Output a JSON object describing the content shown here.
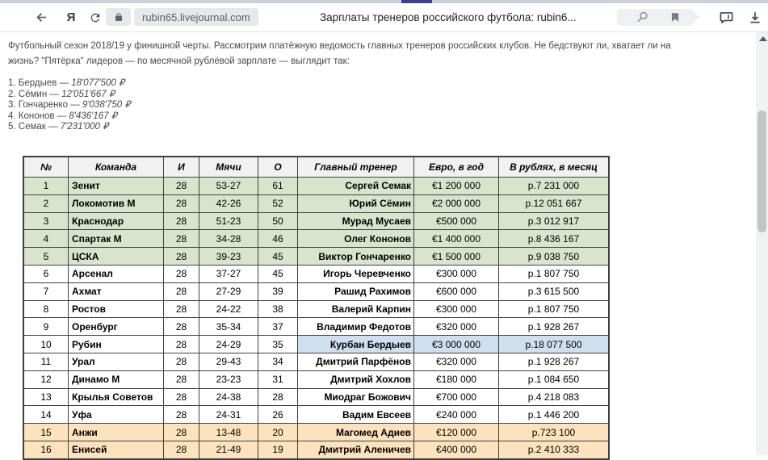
{
  "browser": {
    "url": "rubin65.livejournal.com",
    "page_title": "Зарплаты тренеров российского футбола: rubin6...",
    "yandex_logo": "Я",
    "tab_accent_color": "#3a3f97"
  },
  "intro": {
    "line1": "Футбольный сезон 2018/19 у финишной черты. Рассмотрим платёжную ведомость главных тренеров российских клубов. Не бедствуют ли, хватает ли на",
    "line2": "жизнь? \"Пятёрка\" лидеров — по месячной рублёвой зарплате — выглядит так:",
    "leaders": [
      {
        "label": "1. Бердыев — ",
        "amount": "18'077'500 ₽"
      },
      {
        "label": "2. Сёмин — ",
        "amount": "12'051'667 ₽"
      },
      {
        "label": "3. Гончаренко — ",
        "amount": "9'038'750 ₽"
      },
      {
        "label": "4. Кононов — ",
        "amount": "8'436'167 ₽"
      },
      {
        "label": "5. Семак — ",
        "amount": "7'231'000 ₽"
      }
    ]
  },
  "table": {
    "headers": [
      "№",
      "Команда",
      "И",
      "Мячи",
      "О",
      "Главный тренер",
      "Евро, в год",
      "В рублях, в месяц"
    ],
    "rows": [
      {
        "cells": [
          "1",
          "Зенит",
          "28",
          "53-27",
          "61",
          "Сергей Семак",
          "€1 200 000",
          "р.7 231 000"
        ],
        "tone": "green",
        "highlight": false
      },
      {
        "cells": [
          "2",
          "Локомотив М",
          "28",
          "42-26",
          "52",
          "Юрий Сёмин",
          "€2 000 000",
          "р.12 051 667"
        ],
        "tone": "green",
        "highlight": false
      },
      {
        "cells": [
          "3",
          "Краснодар",
          "28",
          "51-23",
          "50",
          "Мурад Мусаев",
          "€500 000",
          "р.3 012 917"
        ],
        "tone": "green",
        "highlight": false
      },
      {
        "cells": [
          "4",
          "Спартак М",
          "28",
          "34-28",
          "46",
          "Олег Кононов",
          "€1 400 000",
          "р.8 436 167"
        ],
        "tone": "green",
        "highlight": false
      },
      {
        "cells": [
          "5",
          "ЦСКА",
          "28",
          "39-23",
          "45",
          "Виктор Гончаренко",
          "€1 500 000",
          "р.9 038 750"
        ],
        "tone": "green",
        "highlight": false
      },
      {
        "cells": [
          "6",
          "Арсенал",
          "28",
          "37-27",
          "45",
          "Игорь Черевченко",
          "€300 000",
          "р.1 807 750"
        ],
        "tone": "white",
        "highlight": false
      },
      {
        "cells": [
          "7",
          "Ахмат",
          "28",
          "27-29",
          "39",
          "Рашид Рахимов",
          "€600 000",
          "р.3 615 500"
        ],
        "tone": "white",
        "highlight": false
      },
      {
        "cells": [
          "8",
          "Ростов",
          "28",
          "24-22",
          "38",
          "Валерий Карпин",
          "€300 000",
          "р.1 807 750"
        ],
        "tone": "white",
        "highlight": false
      },
      {
        "cells": [
          "9",
          "Оренбург",
          "28",
          "35-34",
          "37",
          "Владимир Федотов",
          "€320 000",
          "р.1 928 267"
        ],
        "tone": "white",
        "highlight": false
      },
      {
        "cells": [
          "10",
          "Рубин",
          "28",
          "24-29",
          "35",
          "Курбан Бердыев",
          "€3 000 000",
          "р.18 077 500"
        ],
        "tone": "white",
        "highlight": true
      },
      {
        "cells": [
          "11",
          "Урал",
          "28",
          "29-43",
          "34",
          "Дмитрий Парфёнов",
          "€320 000",
          "р.1 928 267"
        ],
        "tone": "white",
        "highlight": false
      },
      {
        "cells": [
          "12",
          "Динамо М",
          "28",
          "23-23",
          "31",
          "Дмитрий Хохлов",
          "€180 000",
          "р.1 084 650"
        ],
        "tone": "white",
        "highlight": false
      },
      {
        "cells": [
          "13",
          "Крылья Советов",
          "28",
          "24-38",
          "28",
          "Миодраг Божович",
          "€700 000",
          "р.4 218 083"
        ],
        "tone": "white",
        "highlight": false
      },
      {
        "cells": [
          "14",
          "Уфа",
          "28",
          "24-31",
          "26",
          "Вадим Евсеев",
          "€240 000",
          "р.1 446 200"
        ],
        "tone": "white",
        "highlight": false
      },
      {
        "cells": [
          "15",
          "Анжи",
          "28",
          "13-48",
          "20",
          "Магомед Адиев",
          "€120 000",
          "р.723 100"
        ],
        "tone": "orange",
        "highlight": false
      },
      {
        "cells": [
          "16",
          "Енисей",
          "28",
          "21-49",
          "19",
          "Дмитрий Аленичев",
          "€400 000",
          "р.2 410 333"
        ],
        "tone": "orange",
        "highlight": false
      }
    ]
  },
  "colors": {
    "top_five_row": "#d8e5cc",
    "relegation_row": "#fce3bd",
    "rubin_highlight": "#cfdfef",
    "header_bg": "#f1f1f1"
  }
}
